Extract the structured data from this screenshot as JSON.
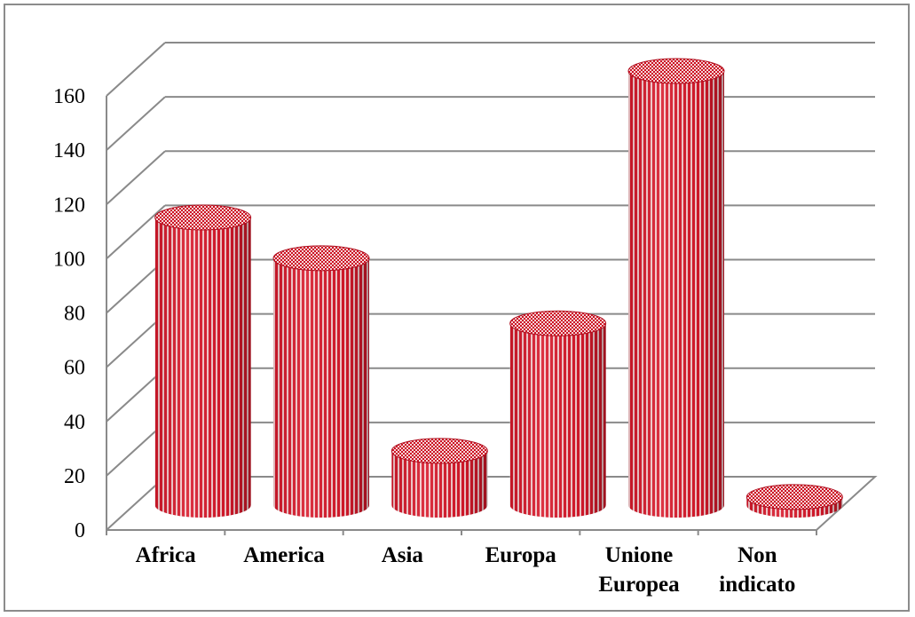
{
  "chart_data": {
    "type": "bar",
    "style": "3d-cylinder",
    "categories": [
      "Africa",
      "America",
      "Asia",
      "Europa",
      "Unione Europea",
      "Non indicato"
    ],
    "category_lines": [
      [
        "Africa"
      ],
      [
        "America"
      ],
      [
        "Asia"
      ],
      [
        "Europa"
      ],
      [
        "Unione",
        "Europea"
      ],
      [
        "Non",
        "indicato"
      ]
    ],
    "values": [
      106,
      91,
      20,
      67,
      160,
      3
    ],
    "ylim": [
      0,
      160
    ],
    "yticks": [
      "0",
      "20",
      "40",
      "60",
      "80",
      "100",
      "120",
      "140",
      "160"
    ],
    "grid": true,
    "legend": "none",
    "colors": {
      "bar_red": "#d8182a",
      "bar_light": "#f6c9cc",
      "grid": "#8a8a8a"
    }
  }
}
